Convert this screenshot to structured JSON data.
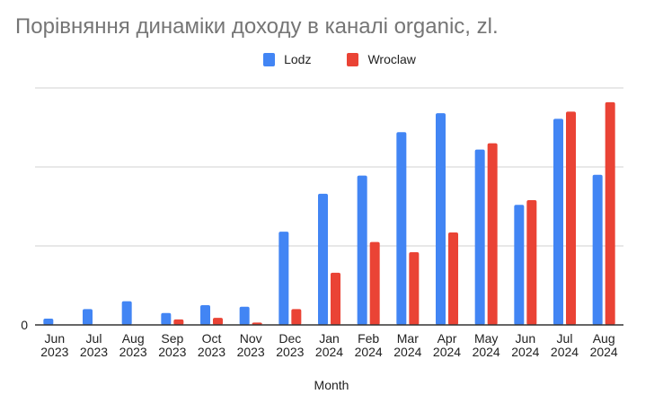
{
  "chart_data": {
    "type": "bar",
    "title": "Порівняння динаміки доходу в каналі organic, zl.",
    "xlabel": "Month",
    "ylabel": "",
    "y_tick_labels": [
      "0"
    ],
    "grid": true,
    "gridline_count": 3,
    "value_units_note": "relative units; 1.0 = one gridline step (axis values not labeled besides 0)",
    "ylim": [
      0,
      3
    ],
    "legend_position": "top",
    "categories": [
      {
        "month": "Jun",
        "year": "2023"
      },
      {
        "month": "Jul",
        "year": "2023"
      },
      {
        "month": "Aug",
        "year": "2023"
      },
      {
        "month": "Sep",
        "year": "2023"
      },
      {
        "month": "Oct",
        "year": "2023"
      },
      {
        "month": "Nov",
        "year": "2023"
      },
      {
        "month": "Dec",
        "year": "2023"
      },
      {
        "month": "Jan",
        "year": "2024"
      },
      {
        "month": "Feb",
        "year": "2024"
      },
      {
        "month": "Mar",
        "year": "2024"
      },
      {
        "month": "Apr",
        "year": "2024"
      },
      {
        "month": "May",
        "year": "2024"
      },
      {
        "month": "Jun",
        "year": "2024"
      },
      {
        "month": "Jul",
        "year": "2024"
      },
      {
        "month": "Aug",
        "year": "2024"
      }
    ],
    "series": [
      {
        "name": "Lodz",
        "color": "#4285F4",
        "values": [
          0.08,
          0.2,
          0.3,
          0.15,
          0.25,
          0.23,
          1.18,
          1.66,
          1.89,
          2.44,
          2.68,
          2.22,
          1.52,
          2.61,
          1.9
        ]
      },
      {
        "name": "Wroclaw",
        "color": "#EA4335",
        "values": [
          0,
          0,
          0,
          0.07,
          0.09,
          0.03,
          0.2,
          0.66,
          1.05,
          0.92,
          1.17,
          2.3,
          1.58,
          2.7,
          2.82
        ]
      }
    ]
  },
  "colors": {
    "title": "#757575",
    "grid": "#e0e0e0",
    "axis": "#333333"
  }
}
